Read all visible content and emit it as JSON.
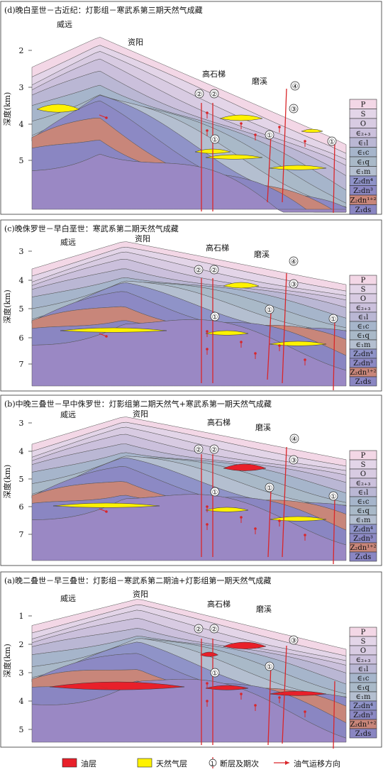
{
  "panels": [
    {
      "id": "d",
      "title": "(d)晚白垩世－古近纪：灯影组－寒武系第三期天然气成藏",
      "y_axis_label": "深度(km)",
      "y_ticks": [
        "2",
        "3",
        "4",
        "5"
      ],
      "places": [
        "威远",
        "资阳",
        "高石梯",
        "磨溪"
      ],
      "fault_labels": [
        "②",
        "②",
        "①",
        "①",
        "①",
        "③",
        "④"
      ]
    },
    {
      "id": "c",
      "title": "(c)晚侏罗世－早白垩世：寒武系第二期天然气成藏",
      "y_axis_label": "深度(km)",
      "y_ticks": [
        "3",
        "4",
        "5",
        "6",
        "7"
      ],
      "places": [
        "威远",
        "资阳",
        "高石梯",
        "磨溪"
      ],
      "fault_labels": [
        "②",
        "②",
        "①",
        "①",
        "①",
        "③",
        "④"
      ]
    },
    {
      "id": "b",
      "title": "(b)中晚三叠世－早中侏罗世：灯影组第二期天然气+寒武系第一期天然气成藏",
      "y_axis_label": "深度(km)",
      "y_ticks": [
        "3",
        "4",
        "5",
        "6",
        "7"
      ],
      "places": [
        "威远",
        "资阳",
        "高石梯",
        "磨溪"
      ],
      "fault_labels": [
        "②",
        "②",
        "①",
        "①",
        "①",
        "③",
        "④"
      ]
    },
    {
      "id": "a",
      "title": "(a)晚二叠世－早三叠世：灯影组－寒武系第二期油+灯影组第一期天然气成藏",
      "y_axis_label": "深度(km)",
      "y_ticks": [
        "1",
        "2",
        "3",
        "4",
        "5"
      ],
      "places": [
        "威远",
        "资阳",
        "高石梯",
        "磨溪"
      ],
      "fault_labels": [
        "②",
        "②",
        "①",
        "①",
        "③"
      ]
    }
  ],
  "strata_legend": [
    "P",
    "S",
    "O",
    "∈₂₊₃",
    "∈₁l",
    "∈₁c",
    "∈₁q",
    "∈₁m",
    "Z₂dn⁴",
    "Z₂dn³",
    "Z₂dn¹⁺²",
    "Z₁ds"
  ],
  "bottom_legend": {
    "oil": "油层",
    "gas": "天然气层",
    "fault": "断层及期次",
    "migration": "油气运移方向"
  },
  "colors": {
    "oil": "#e8202a",
    "gas": "#fff200",
    "fault": "#d9262a",
    "layers": [
      "#f3d7e6",
      "#e3d5e8",
      "#d8cbe2",
      "#cbc0dc",
      "#bab7d4",
      "#a6b5cb",
      "#a9b9c8",
      "#b4bfd0",
      "#8f93c8",
      "#8c89c4",
      "#c8867a",
      "#8a86c2",
      "#9a88c4"
    ]
  }
}
